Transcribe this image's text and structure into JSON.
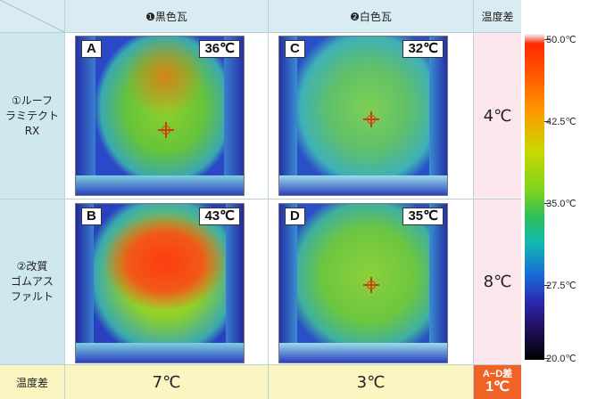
{
  "header": {
    "col1": "❶黒色瓦",
    "col2": "❷白色瓦",
    "col3": "温度差"
  },
  "rows": [
    {
      "label_lines": [
        "①ルーフ",
        "ラミテクト",
        "RX"
      ],
      "diff": "4℃"
    },
    {
      "label_lines": [
        "②改質",
        "ゴムアス",
        "ファルト"
      ],
      "diff": "8℃"
    }
  ],
  "images": [
    {
      "letter": "A",
      "temp": "36℃"
    },
    {
      "letter": "C",
      "temp": "32℃"
    },
    {
      "letter": "B",
      "temp": "43℃"
    },
    {
      "letter": "D",
      "temp": "35℃"
    }
  ],
  "bottom": {
    "label": "温度差",
    "col1": "7℃",
    "col2": "3℃",
    "ad_label": "A−D差",
    "ad_value": "1℃"
  },
  "scale": {
    "labels": [
      "50.0℃",
      "42.5℃",
      "35.0℃",
      "27.5℃",
      "20.0℃"
    ],
    "colors": {
      "hot": "#ff2a00",
      "mid": "#7ed320",
      "cool": "#1a6ad8",
      "cold": "#000000"
    }
  }
}
